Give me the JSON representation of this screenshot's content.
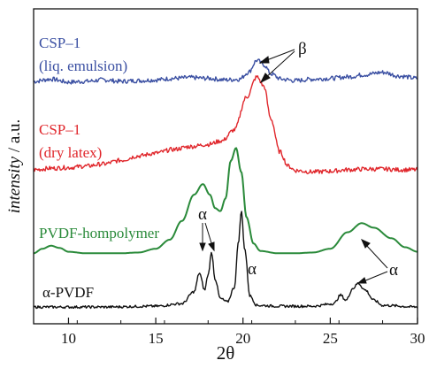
{
  "chart_data": {
    "type": "line",
    "xlabel": "2θ",
    "ylabel_italic": "intensity",
    "ylabel_rest": " / a.u.",
    "xlim": [
      8,
      30
    ],
    "xticks": [
      10,
      15,
      20,
      25,
      30
    ],
    "xtick_labels": [
      "10",
      "15",
      "20",
      "25",
      "30"
    ],
    "grid": false,
    "legend": "none",
    "series": [
      {
        "name": "CSP–1 (liq. emulsion)",
        "label_lines": [
          "CSP–1",
          "(liq. emulsion)"
        ],
        "color": "#3a4fa2",
        "noise": 0.03,
        "points": [
          [
            8,
            0.0
          ],
          [
            9,
            0.03
          ],
          [
            10,
            -0.01
          ],
          [
            11,
            0.0
          ],
          [
            12,
            0.02
          ],
          [
            13,
            0.0
          ],
          [
            14,
            0.01
          ],
          [
            15,
            0.02
          ],
          [
            16,
            0.04
          ],
          [
            17,
            0.05
          ],
          [
            18,
            0.04
          ],
          [
            19,
            0.02
          ],
          [
            19.8,
            0.03
          ],
          [
            20.3,
            0.12
          ],
          [
            20.8,
            0.28
          ],
          [
            21.2,
            0.22
          ],
          [
            21.6,
            0.1
          ],
          [
            22.2,
            0.03
          ],
          [
            23,
            0.01
          ],
          [
            24,
            0.03
          ],
          [
            25,
            0.04
          ],
          [
            26,
            0.06
          ],
          [
            27,
            0.09
          ],
          [
            28,
            0.12
          ],
          [
            29,
            0.07
          ],
          [
            30,
            0.04
          ]
        ]
      },
      {
        "name": "CSP–1 (dry latex)",
        "label_lines": [
          "CSP–1",
          "(dry latex)"
        ],
        "color": "#e0262b",
        "noise": 0.03,
        "points": [
          [
            8,
            0.05
          ],
          [
            9,
            0.07
          ],
          [
            10,
            0.08
          ],
          [
            11,
            0.1
          ],
          [
            12,
            0.13
          ],
          [
            13,
            0.18
          ],
          [
            14,
            0.24
          ],
          [
            15,
            0.28
          ],
          [
            16,
            0.33
          ],
          [
            17,
            0.37
          ],
          [
            18,
            0.4
          ],
          [
            18.8,
            0.45
          ],
          [
            19.5,
            0.6
          ],
          [
            20.2,
            1.05
          ],
          [
            20.8,
            1.33
          ],
          [
            21.2,
            1.2
          ],
          [
            21.6,
            0.75
          ],
          [
            22.1,
            0.3
          ],
          [
            22.6,
            0.1
          ],
          [
            23,
            0.04
          ],
          [
            24,
            0.02
          ],
          [
            25,
            0.03
          ],
          [
            26,
            0.05
          ],
          [
            27,
            0.06
          ],
          [
            28,
            0.06
          ],
          [
            29,
            0.05
          ],
          [
            30,
            0.05
          ]
        ]
      },
      {
        "name": "PVDF-hompolymer",
        "label_lines": [
          "PVDF-hompolymer"
        ],
        "color": "#2a8a3a",
        "noise": 0.0,
        "points": [
          [
            8,
            0.02
          ],
          [
            8.5,
            0.08
          ],
          [
            9,
            0.12
          ],
          [
            9.5,
            0.09
          ],
          [
            10,
            0.04
          ],
          [
            11,
            0.02
          ],
          [
            12,
            0.02
          ],
          [
            13,
            0.02
          ],
          [
            14,
            0.03
          ],
          [
            15,
            0.08
          ],
          [
            15.8,
            0.2
          ],
          [
            16.5,
            0.45
          ],
          [
            17.2,
            0.8
          ],
          [
            17.7,
            0.94
          ],
          [
            18.1,
            0.8
          ],
          [
            18.4,
            0.62
          ],
          [
            18.7,
            0.58
          ],
          [
            19.0,
            0.75
          ],
          [
            19.3,
            1.25
          ],
          [
            19.6,
            1.42
          ],
          [
            19.9,
            1.1
          ],
          [
            20.2,
            0.5
          ],
          [
            20.6,
            0.15
          ],
          [
            21,
            0.05
          ],
          [
            22,
            0.02
          ],
          [
            23,
            0.02
          ],
          [
            24,
            0.03
          ],
          [
            25,
            0.08
          ],
          [
            26,
            0.3
          ],
          [
            26.8,
            0.42
          ],
          [
            27.5,
            0.36
          ],
          [
            28.5,
            0.22
          ],
          [
            29.3,
            0.1
          ],
          [
            30,
            0.04
          ]
        ]
      },
      {
        "name": "α-PVDF",
        "label_lines": [
          "α-PVDF"
        ],
        "color": "#111111",
        "noise": 0.015,
        "points": [
          [
            8,
            0.02
          ],
          [
            12,
            0.02
          ],
          [
            15,
            0.03
          ],
          [
            16.5,
            0.06
          ],
          [
            17.2,
            0.2
          ],
          [
            17.5,
            0.42
          ],
          [
            17.8,
            0.22
          ],
          [
            18.0,
            0.4
          ],
          [
            18.2,
            0.66
          ],
          [
            18.4,
            0.35
          ],
          [
            18.7,
            0.12
          ],
          [
            19.1,
            0.08
          ],
          [
            19.5,
            0.25
          ],
          [
            19.75,
            0.8
          ],
          [
            19.9,
            1.15
          ],
          [
            20.1,
            0.7
          ],
          [
            20.4,
            0.15
          ],
          [
            20.8,
            0.04
          ],
          [
            22,
            0.03
          ],
          [
            24,
            0.03
          ],
          [
            25.2,
            0.06
          ],
          [
            25.6,
            0.16
          ],
          [
            25.9,
            0.1
          ],
          [
            26.3,
            0.24
          ],
          [
            26.6,
            0.3
          ],
          [
            27.0,
            0.22
          ],
          [
            27.5,
            0.1
          ],
          [
            28,
            0.04
          ],
          [
            30,
            0.02
          ]
        ]
      }
    ],
    "annotations": [
      {
        "text": "β"
      },
      {
        "text": "α"
      },
      {
        "text": "α"
      },
      {
        "text": "α"
      }
    ]
  }
}
